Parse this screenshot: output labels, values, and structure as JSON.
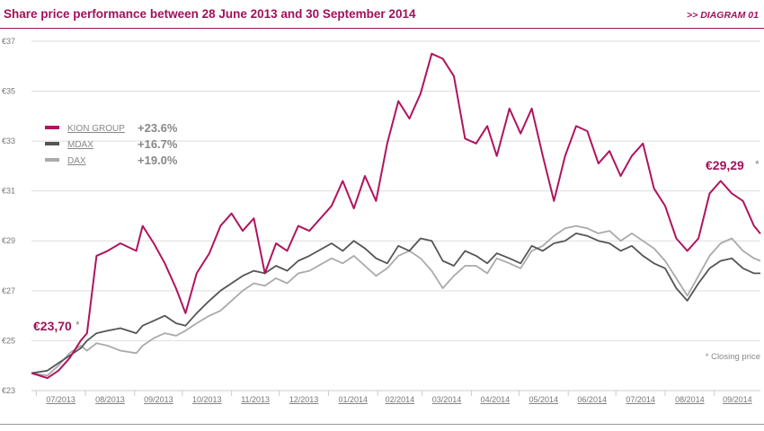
{
  "header": {
    "title": "Share price performance between 28 June 2013 and 30 September 2014",
    "tag": ">> DIAGRAM 01"
  },
  "colors": {
    "kion": "#b0145f",
    "mdax": "#555555",
    "dax": "#aaaaaa",
    "accent": "#a0115a"
  },
  "chart_data": {
    "type": "line",
    "y_ticks": [
      "€37",
      "€35",
      "€33",
      "€31",
      "€29",
      "€27",
      "€25",
      "€23"
    ],
    "ylim": [
      23,
      37.5
    ],
    "x_ticks": [
      "07/2013",
      "08/2013",
      "09/2013",
      "10/2013",
      "11/2013",
      "12/2013",
      "01/2014",
      "02/2014",
      "03/2014",
      "04/2014",
      "05/2014",
      "06/2014",
      "07/2014",
      "08/2014",
      "09/2014"
    ],
    "xlim": [
      "2013-06-28",
      "2014-09-30"
    ],
    "legend": [
      {
        "label": "KION GROUP",
        "value": "+23.6%"
      },
      {
        "label": "MDAX",
        "value": "+16.7%"
      },
      {
        "label": "DAX",
        "value": "+19.0%"
      }
    ],
    "annotations": {
      "start": "€23,70",
      "start_star": "*",
      "end": "€29,29",
      "end_star": "*",
      "note": "* Closing price"
    },
    "series": [
      {
        "name": "KION GROUP",
        "x": [
          "2013-06-28",
          "2013-07-08",
          "2013-07-15",
          "2013-07-22",
          "2013-07-29",
          "2013-08-02",
          "2013-08-08",
          "2013-08-15",
          "2013-08-23",
          "2013-09-02",
          "2013-09-06",
          "2013-09-13",
          "2013-09-20",
          "2013-09-27",
          "2013-10-03",
          "2013-10-10",
          "2013-10-18",
          "2013-10-25",
          "2013-11-01",
          "2013-11-08",
          "2013-11-15",
          "2013-11-22",
          "2013-11-29",
          "2013-12-06",
          "2013-12-13",
          "2013-12-20",
          "2014-01-03",
          "2014-01-10",
          "2014-01-17",
          "2014-01-24",
          "2014-01-31",
          "2014-02-07",
          "2014-02-14",
          "2014-02-21",
          "2014-02-28",
          "2014-03-07",
          "2014-03-14",
          "2014-03-21",
          "2014-03-28",
          "2014-04-04",
          "2014-04-11",
          "2014-04-17",
          "2014-04-25",
          "2014-05-02",
          "2014-05-09",
          "2014-05-16",
          "2014-05-23",
          "2014-05-30",
          "2014-06-06",
          "2014-06-13",
          "2014-06-20",
          "2014-06-27",
          "2014-07-04",
          "2014-07-11",
          "2014-07-18",
          "2014-07-25",
          "2014-08-01",
          "2014-08-08",
          "2014-08-15",
          "2014-08-22",
          "2014-08-29",
          "2014-09-05",
          "2014-09-12",
          "2014-09-19",
          "2014-09-26",
          "2014-09-30"
        ],
        "values": [
          23.7,
          23.5,
          23.8,
          24.3,
          25.0,
          25.3,
          28.4,
          28.6,
          28.9,
          28.6,
          29.6,
          28.9,
          28.1,
          27.1,
          26.1,
          27.7,
          28.5,
          29.6,
          30.1,
          29.4,
          29.9,
          27.7,
          28.9,
          28.6,
          29.6,
          29.4,
          30.4,
          31.4,
          30.3,
          31.6,
          30.6,
          32.9,
          34.6,
          33.9,
          34.9,
          36.5,
          36.3,
          35.6,
          33.1,
          32.9,
          33.6,
          32.4,
          34.3,
          33.3,
          34.3,
          32.4,
          30.6,
          32.4,
          33.6,
          33.4,
          32.1,
          32.6,
          31.6,
          32.4,
          32.9,
          31.1,
          30.4,
          29.1,
          28.6,
          29.1,
          30.9,
          31.4,
          30.9,
          30.6,
          29.6,
          29.29
        ]
      },
      {
        "name": "MDAX",
        "x": [
          "2013-06-28",
          "2013-07-08",
          "2013-07-15",
          "2013-07-22",
          "2013-07-29",
          "2013-08-02",
          "2013-08-08",
          "2013-08-15",
          "2013-08-23",
          "2013-09-02",
          "2013-09-06",
          "2013-09-13",
          "2013-09-20",
          "2013-09-27",
          "2013-10-03",
          "2013-10-10",
          "2013-10-18",
          "2013-10-25",
          "2013-11-01",
          "2013-11-08",
          "2013-11-15",
          "2013-11-22",
          "2013-11-29",
          "2013-12-06",
          "2013-12-13",
          "2013-12-20",
          "2014-01-03",
          "2014-01-10",
          "2014-01-17",
          "2014-01-24",
          "2014-01-31",
          "2014-02-07",
          "2014-02-14",
          "2014-02-21",
          "2014-02-28",
          "2014-03-07",
          "2014-03-14",
          "2014-03-21",
          "2014-03-28",
          "2014-04-04",
          "2014-04-11",
          "2014-04-17",
          "2014-04-25",
          "2014-05-02",
          "2014-05-09",
          "2014-05-16",
          "2014-05-23",
          "2014-05-30",
          "2014-06-06",
          "2014-06-13",
          "2014-06-20",
          "2014-06-27",
          "2014-07-04",
          "2014-07-11",
          "2014-07-18",
          "2014-07-25",
          "2014-08-01",
          "2014-08-08",
          "2014-08-15",
          "2014-08-22",
          "2014-08-29",
          "2014-09-05",
          "2014-09-12",
          "2014-09-19",
          "2014-09-26",
          "2014-09-30"
        ],
        "values": [
          23.7,
          23.8,
          24.1,
          24.4,
          24.7,
          25.0,
          25.3,
          25.4,
          25.5,
          25.3,
          25.6,
          25.8,
          26.0,
          25.7,
          25.6,
          26.1,
          26.6,
          27.0,
          27.3,
          27.6,
          27.8,
          27.7,
          28.0,
          27.8,
          28.2,
          28.4,
          28.9,
          28.6,
          29.0,
          28.7,
          28.3,
          28.1,
          28.8,
          28.6,
          29.1,
          29.0,
          28.2,
          28.0,
          28.6,
          28.4,
          28.1,
          28.5,
          28.3,
          28.1,
          28.8,
          28.6,
          28.9,
          29.0,
          29.3,
          29.2,
          29.0,
          28.9,
          28.6,
          28.8,
          28.4,
          28.1,
          27.9,
          27.1,
          26.6,
          27.3,
          27.9,
          28.2,
          28.3,
          27.9,
          27.7,
          27.7
        ]
      },
      {
        "name": "DAX",
        "x": [
          "2013-06-28",
          "2013-07-08",
          "2013-07-15",
          "2013-07-22",
          "2013-07-29",
          "2013-08-02",
          "2013-08-08",
          "2013-08-15",
          "2013-08-23",
          "2013-09-02",
          "2013-09-06",
          "2013-09-13",
          "2013-09-20",
          "2013-09-27",
          "2013-10-03",
          "2013-10-10",
          "2013-10-18",
          "2013-10-25",
          "2013-11-01",
          "2013-11-08",
          "2013-11-15",
          "2013-11-22",
          "2013-11-29",
          "2013-12-06",
          "2013-12-13",
          "2013-12-20",
          "2014-01-03",
          "2014-01-10",
          "2014-01-17",
          "2014-01-24",
          "2014-01-31",
          "2014-02-07",
          "2014-02-14",
          "2014-02-21",
          "2014-02-28",
          "2014-03-07",
          "2014-03-14",
          "2014-03-21",
          "2014-03-28",
          "2014-04-04",
          "2014-04-11",
          "2014-04-17",
          "2014-04-25",
          "2014-05-02",
          "2014-05-09",
          "2014-05-16",
          "2014-05-23",
          "2014-05-30",
          "2014-06-06",
          "2014-06-13",
          "2014-06-20",
          "2014-06-27",
          "2014-07-04",
          "2014-07-11",
          "2014-07-18",
          "2014-07-25",
          "2014-08-01",
          "2014-08-08",
          "2014-08-15",
          "2014-08-22",
          "2014-08-29",
          "2014-09-05",
          "2014-09-12",
          "2014-09-19",
          "2014-09-26",
          "2014-09-30"
        ],
        "values": [
          23.7,
          23.6,
          24.0,
          24.5,
          24.8,
          24.6,
          24.9,
          24.8,
          24.6,
          24.5,
          24.8,
          25.1,
          25.3,
          25.2,
          25.4,
          25.7,
          26.0,
          26.2,
          26.6,
          27.0,
          27.3,
          27.2,
          27.5,
          27.3,
          27.7,
          27.8,
          28.3,
          28.1,
          28.4,
          28.0,
          27.6,
          27.9,
          28.4,
          28.6,
          28.3,
          27.8,
          27.1,
          27.6,
          28.0,
          28.0,
          27.7,
          28.3,
          28.1,
          27.9,
          28.6,
          28.8,
          29.2,
          29.5,
          29.6,
          29.5,
          29.3,
          29.4,
          29.0,
          29.3,
          29.0,
          28.7,
          28.2,
          27.5,
          26.8,
          27.6,
          28.4,
          28.9,
          29.1,
          28.6,
          28.3,
          28.2
        ]
      }
    ]
  }
}
